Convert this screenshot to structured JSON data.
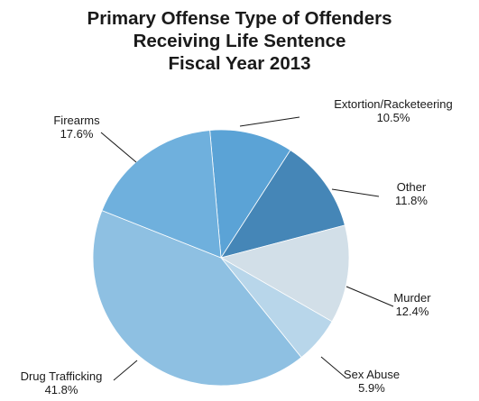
{
  "chart_data": {
    "type": "pie",
    "title_lines": [
      "Primary Offense Type of Offenders",
      "Receiving Life Sentence",
      "Fiscal Year 2013"
    ],
    "slices": [
      {
        "label": "Extortion/Racketeering",
        "value": 10.5,
        "value_label": "10.5%",
        "color": "#5ba3d6"
      },
      {
        "label": "Other",
        "value": 11.8,
        "value_label": "11.8%",
        "color": "#4586b7"
      },
      {
        "label": "Murder",
        "value": 12.4,
        "value_label": "12.4%",
        "color": "#d2dfe8"
      },
      {
        "label": "Sex Abuse",
        "value": 5.9,
        "value_label": "5.9%",
        "color": "#b8d6ea"
      },
      {
        "label": "Drug Trafficking",
        "value": 41.8,
        "value_label": "41.8%",
        "color": "#8ec0e2"
      },
      {
        "label": "Firearms",
        "value": 17.6,
        "value_label": "17.6%",
        "color": "#6fb0dd"
      }
    ],
    "start_angle_deg": 355,
    "direction": "clockwise"
  }
}
